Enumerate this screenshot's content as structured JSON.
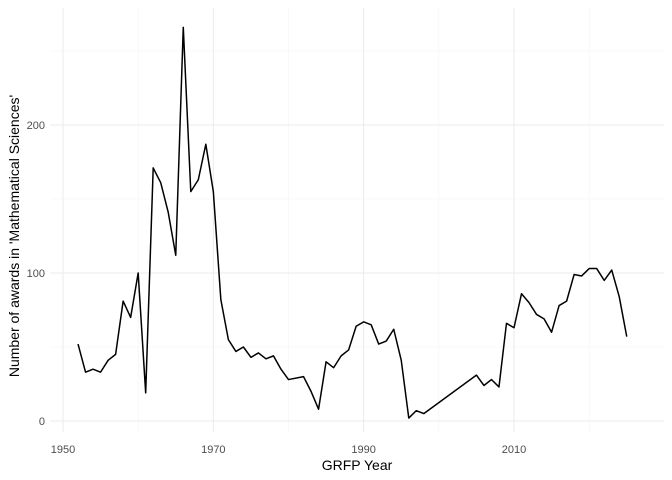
{
  "chart_data": {
    "type": "line",
    "title": "",
    "xlabel": "GRFP Year",
    "ylabel": "Number of awards in 'Mathematical Sciences'",
    "xlim": [
      1952,
      2025
    ],
    "ylim": [
      0,
      265
    ],
    "x_ticks": [
      1950,
      1970,
      1990,
      2010
    ],
    "y_ticks": [
      0,
      100,
      200
    ],
    "grid": true,
    "legend": "none",
    "line_color": "#000000",
    "series": [
      {
        "x": [
          1952,
          1953,
          1954,
          1955,
          1956,
          1957,
          1958,
          1959,
          1960,
          1961,
          1962,
          1963,
          1964,
          1965,
          1966,
          1967,
          1968,
          1969,
          1970,
          1971,
          1972,
          1973,
          1974,
          1975,
          1976,
          1977,
          1978,
          1979,
          1980,
          1982,
          1983,
          1984,
          1985,
          1986,
          1987,
          1988,
          1989,
          1990,
          1991,
          1992,
          1993,
          1994,
          1995,
          1996,
          1997,
          1998,
          2005,
          2006,
          2007,
          2008,
          2009,
          2010,
          2011,
          2012,
          2013,
          2014,
          2015,
          2016,
          2017,
          2018,
          2019,
          2020,
          2021,
          2022,
          2023,
          2024,
          2025
        ],
        "y": [
          52,
          33,
          35,
          33,
          41,
          45,
          81,
          70,
          100,
          19,
          171,
          161,
          141,
          112,
          266,
          155,
          163,
          187,
          155,
          82,
          55,
          47,
          50,
          43,
          46,
          42,
          44,
          35,
          28,
          30,
          20,
          8,
          40,
          36,
          44,
          48,
          64,
          67,
          65,
          52,
          54,
          62,
          41,
          2,
          7,
          5,
          31,
          24,
          28,
          23,
          66,
          63,
          86,
          80,
          72,
          69,
          60,
          78,
          81,
          99,
          98,
          103,
          103,
          95,
          102,
          84,
          57
        ]
      }
    ]
  }
}
